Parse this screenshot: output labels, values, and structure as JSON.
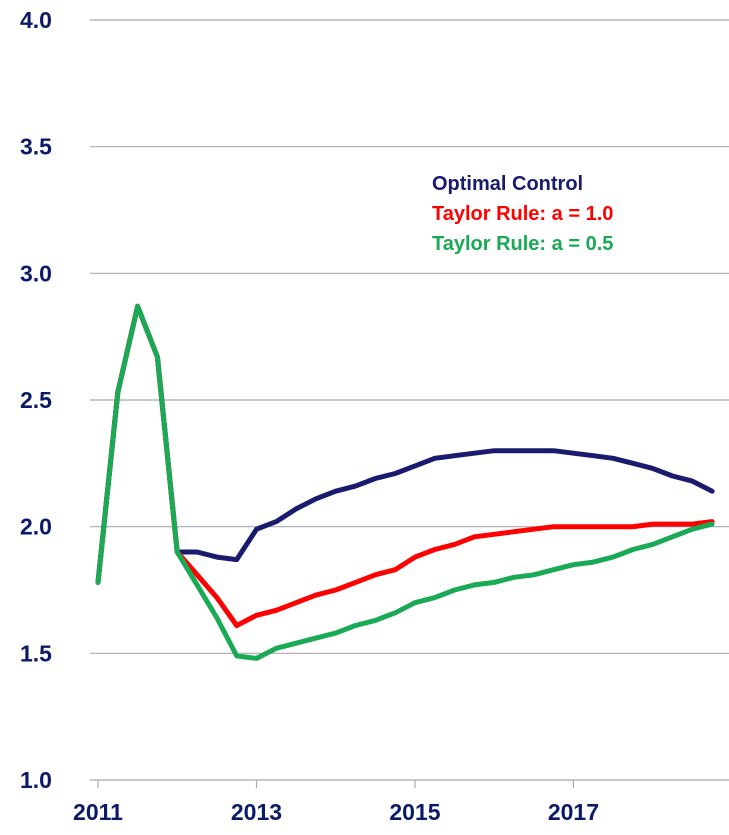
{
  "chart_data": {
    "type": "line",
    "title": "",
    "xlabel": "",
    "ylabel": "",
    "ylim": [
      1.0,
      4.0
    ],
    "xlim": [
      2011,
      2018.9
    ],
    "yticks": [
      "4.0",
      "3.5",
      "3.0",
      "2.5",
      "2.0",
      "1.5",
      "1.0"
    ],
    "xticks": [
      "2011",
      "2013",
      "2015",
      "2017"
    ],
    "grid": true,
    "legend_position": "upper-right",
    "series": [
      {
        "name": "Optimal Control",
        "color": "#1a1a6e",
        "points": [
          [
            2011.0,
            1.78
          ],
          [
            2011.25,
            2.53
          ],
          [
            2011.5,
            2.87
          ],
          [
            2011.75,
            2.67
          ],
          [
            2012.0,
            1.9
          ],
          [
            2012.25,
            1.9
          ],
          [
            2012.5,
            1.88
          ],
          [
            2012.75,
            1.87
          ],
          [
            2013.0,
            1.99
          ],
          [
            2013.25,
            2.02
          ],
          [
            2013.5,
            2.07
          ],
          [
            2013.75,
            2.11
          ],
          [
            2014.0,
            2.14
          ],
          [
            2014.25,
            2.16
          ],
          [
            2014.5,
            2.19
          ],
          [
            2014.75,
            2.21
          ],
          [
            2015.0,
            2.24
          ],
          [
            2015.25,
            2.27
          ],
          [
            2015.5,
            2.28
          ],
          [
            2015.75,
            2.29
          ],
          [
            2016.0,
            2.3
          ],
          [
            2016.25,
            2.3
          ],
          [
            2016.5,
            2.3
          ],
          [
            2016.75,
            2.3
          ],
          [
            2017.0,
            2.29
          ],
          [
            2017.25,
            2.28
          ],
          [
            2017.5,
            2.27
          ],
          [
            2017.75,
            2.25
          ],
          [
            2018.0,
            2.23
          ],
          [
            2018.25,
            2.2
          ],
          [
            2018.5,
            2.18
          ],
          [
            2018.75,
            2.14
          ]
        ]
      },
      {
        "name": "Taylor Rule: a = 1.0",
        "color": "#ff0000",
        "points": [
          [
            2011.0,
            1.78
          ],
          [
            2011.25,
            2.53
          ],
          [
            2011.5,
            2.87
          ],
          [
            2011.75,
            2.67
          ],
          [
            2012.0,
            1.9
          ],
          [
            2012.25,
            1.81
          ],
          [
            2012.5,
            1.72
          ],
          [
            2012.75,
            1.61
          ],
          [
            2013.0,
            1.65
          ],
          [
            2013.25,
            1.67
          ],
          [
            2013.5,
            1.7
          ],
          [
            2013.75,
            1.73
          ],
          [
            2014.0,
            1.75
          ],
          [
            2014.25,
            1.78
          ],
          [
            2014.5,
            1.81
          ],
          [
            2014.75,
            1.83
          ],
          [
            2015.0,
            1.88
          ],
          [
            2015.25,
            1.91
          ],
          [
            2015.5,
            1.93
          ],
          [
            2015.75,
            1.96
          ],
          [
            2016.0,
            1.97
          ],
          [
            2016.25,
            1.98
          ],
          [
            2016.5,
            1.99
          ],
          [
            2016.75,
            2.0
          ],
          [
            2017.0,
            2.0
          ],
          [
            2017.25,
            2.0
          ],
          [
            2017.5,
            2.0
          ],
          [
            2017.75,
            2.0
          ],
          [
            2018.0,
            2.01
          ],
          [
            2018.25,
            2.01
          ],
          [
            2018.5,
            2.01
          ],
          [
            2018.75,
            2.02
          ]
        ]
      },
      {
        "name": "Taylor Rule: a = 0.5",
        "color": "#1aaa55",
        "points": [
          [
            2011.0,
            1.78
          ],
          [
            2011.25,
            2.53
          ],
          [
            2011.5,
            2.87
          ],
          [
            2011.75,
            2.67
          ],
          [
            2012.0,
            1.9
          ],
          [
            2012.25,
            1.77
          ],
          [
            2012.5,
            1.64
          ],
          [
            2012.75,
            1.49
          ],
          [
            2013.0,
            1.48
          ],
          [
            2013.25,
            1.52
          ],
          [
            2013.5,
            1.54
          ],
          [
            2013.75,
            1.56
          ],
          [
            2014.0,
            1.58
          ],
          [
            2014.25,
            1.61
          ],
          [
            2014.5,
            1.63
          ],
          [
            2014.75,
            1.66
          ],
          [
            2015.0,
            1.7
          ],
          [
            2015.25,
            1.72
          ],
          [
            2015.5,
            1.75
          ],
          [
            2015.75,
            1.77
          ],
          [
            2016.0,
            1.78
          ],
          [
            2016.25,
            1.8
          ],
          [
            2016.5,
            1.81
          ],
          [
            2016.75,
            1.83
          ],
          [
            2017.0,
            1.85
          ],
          [
            2017.25,
            1.86
          ],
          [
            2017.5,
            1.88
          ],
          [
            2017.75,
            1.91
          ],
          [
            2018.0,
            1.93
          ],
          [
            2018.25,
            1.96
          ],
          [
            2018.5,
            1.99
          ],
          [
            2018.75,
            2.01
          ]
        ]
      }
    ]
  }
}
